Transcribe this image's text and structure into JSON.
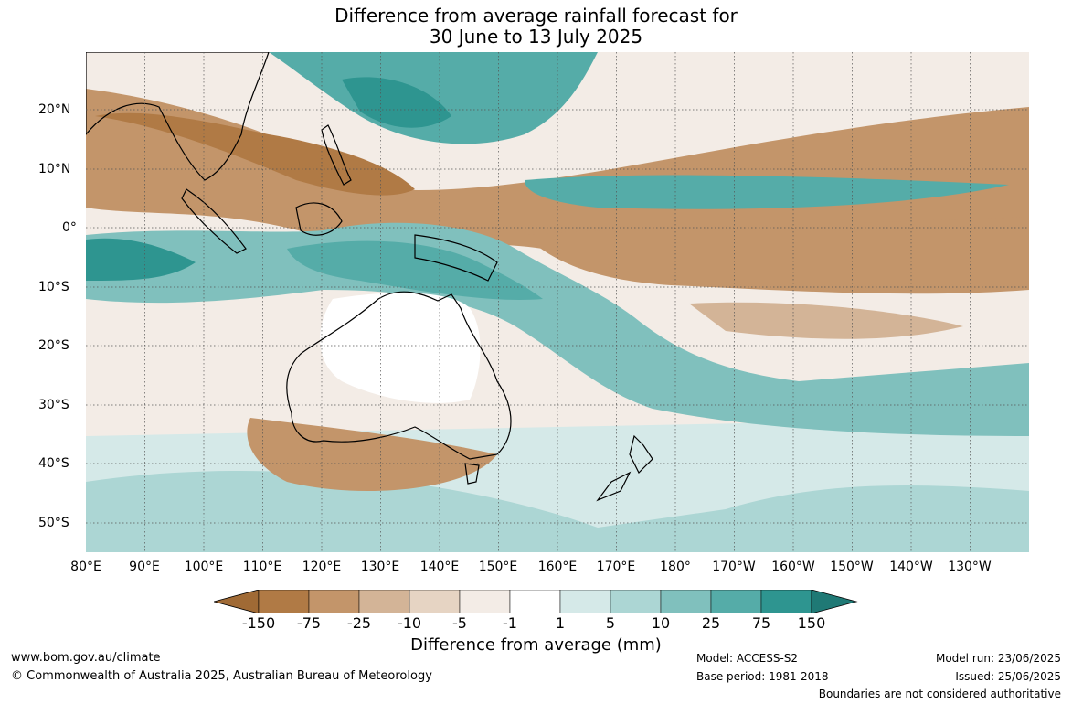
{
  "title_line1": "Difference from average rainfall forecast for",
  "title_line2": "30 June to 13 July 2025",
  "lon_labels": [
    "80°E",
    "90°E",
    "100°E",
    "110°E",
    "120°E",
    "130°E",
    "140°E",
    "150°E",
    "160°E",
    "170°E",
    "180°",
    "170°W",
    "160°W",
    "150°W",
    "140°W",
    "130°W"
  ],
  "lat_labels": [
    "20°N",
    "10°N",
    "0°",
    "10°S",
    "20°S",
    "30°S",
    "40°S",
    "50°S"
  ],
  "legend": {
    "title": "Difference from average (mm)",
    "ticks": [
      "-150",
      "-75",
      "-25",
      "-10",
      "-5",
      "-1",
      "1",
      "5",
      "10",
      "25",
      "75",
      "150"
    ],
    "colors": [
      "#a06a35",
      "#b07a45",
      "#c3956a",
      "#d3b497",
      "#e6d4c3",
      "#f3ece6",
      "#ffffff",
      "#d5e9e8",
      "#acd6d4",
      "#80c0bd",
      "#55aca8",
      "#2e9590",
      "#1f7975"
    ]
  },
  "footer": {
    "website": "www.bom.gov.au/climate",
    "copyright": "© Commonwealth of Australia 2025, Australian Bureau of Meteorology",
    "model": "Model: ACCESS-S2",
    "base_period": "Base period: 1981-2018",
    "model_run": "Model run: 23/06/2025",
    "issued": "Issued: 25/06/2025",
    "disclaimer": "Boundaries are not considered authoritative"
  }
}
